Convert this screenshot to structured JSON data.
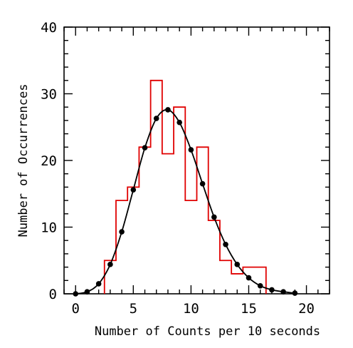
{
  "chart_data": {
    "type": "line",
    "title": "",
    "xlabel": "Number of Counts per 10 seconds",
    "ylabel": "Number of Occurrences",
    "xlim": [
      -1,
      22
    ],
    "ylim": [
      0,
      40
    ],
    "x_tick_labels": [
      "0",
      "5",
      "10",
      "15",
      "20"
    ],
    "x_ticks": [
      0,
      5,
      10,
      15,
      20
    ],
    "y_tick_labels": [
      "0",
      "10",
      "20",
      "30",
      "40"
    ],
    "y_ticks": [
      0,
      10,
      20,
      30,
      40
    ],
    "grid": false,
    "series": [
      {
        "type": "histogram",
        "color": "#e00000",
        "x": [
          3,
          4,
          5,
          6,
          7,
          8,
          9,
          10,
          11,
          12,
          13,
          14,
          15,
          16
        ],
        "values": [
          5,
          14,
          16,
          22,
          32,
          21,
          28,
          14,
          22,
          11,
          5,
          3,
          4,
          4
        ]
      },
      {
        "type": "line",
        "color": "#000000",
        "marker": "circle",
        "x": [
          0,
          1,
          2,
          3,
          4,
          5,
          6,
          7,
          8,
          9,
          10,
          11,
          12,
          13,
          14,
          15,
          16,
          17,
          18,
          19
        ],
        "values": [
          0.0,
          0.3,
          1.5,
          4.4,
          9.3,
          15.6,
          21.9,
          26.3,
          27.6,
          25.7,
          21.6,
          16.5,
          11.5,
          7.4,
          4.4,
          2.4,
          1.2,
          0.6,
          0.3,
          0.1
        ]
      }
    ]
  }
}
